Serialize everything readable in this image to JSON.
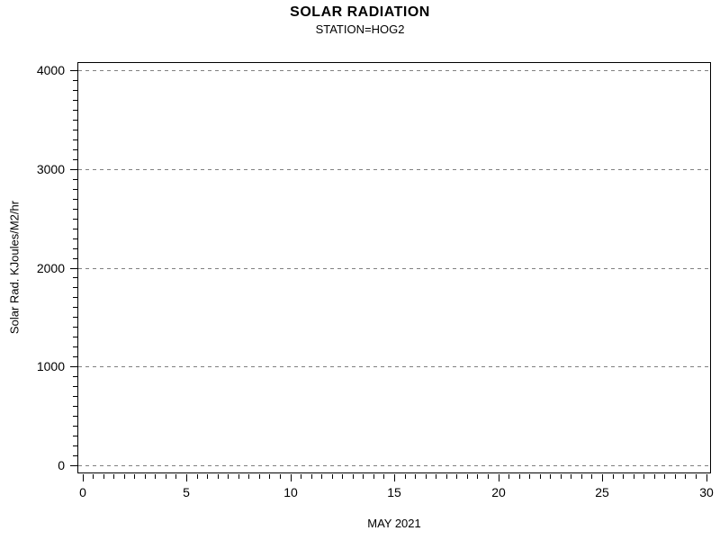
{
  "chart_data": {
    "type": "line",
    "title": "SOLAR RADIATION",
    "subtitle": "STATION=HOG2",
    "xlabel": "MAY 2021",
    "ylabel": "Solar Rad. KJoules/M2/hr",
    "xlim": [
      0,
      30
    ],
    "ylim": [
      0,
      4000
    ],
    "x_major_ticks": [
      0,
      5,
      10,
      15,
      20,
      25,
      30
    ],
    "x_major_tick_labels": [
      "0",
      "5",
      "10",
      "15",
      "20",
      "25",
      "30"
    ],
    "y_major_ticks": [
      0,
      1000,
      2000,
      3000,
      4000
    ],
    "y_major_tick_labels": [
      "0",
      "1000",
      "2000",
      "3000",
      "4000"
    ],
    "x_minor_divisions_per_interval": 10,
    "y_minor_divisions_per_interval": 10,
    "grid": "horizontal dashed gridlines at each y major tick",
    "legend": "none",
    "series": [],
    "colors": {
      "gridline": "#808080",
      "axis": "#000000",
      "text": "#000000",
      "background": "#ffffff"
    }
  }
}
